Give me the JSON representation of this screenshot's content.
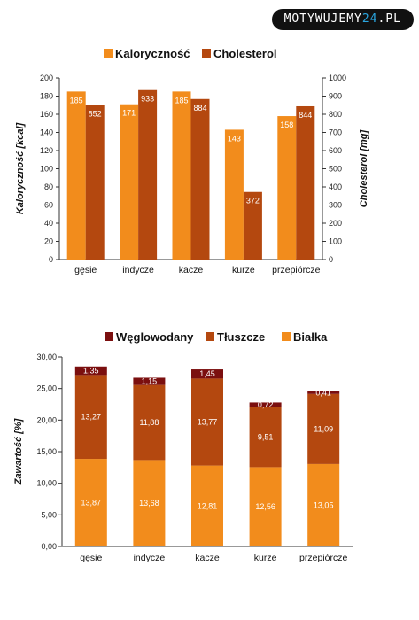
{
  "logo": {
    "main": "MOTYWUJEMY",
    "accent": "24",
    "suffix": ".PL"
  },
  "colors": {
    "kalorycznosc": "#f28c1c",
    "cholesterol": "#b4480f",
    "weglowodany": "#7b0f0f",
    "tluszcze": "#b4480f",
    "bialka": "#f28c1c"
  },
  "chart_data": [
    {
      "type": "bar",
      "categories": [
        "gęsie",
        "indycze",
        "kacze",
        "kurze",
        "przepiórcze"
      ],
      "series": [
        {
          "name": "Kaloryczność",
          "axis": "left",
          "values": [
            185,
            171,
            185,
            143,
            158
          ],
          "labels": [
            "185",
            "171",
            "185",
            "143",
            "158"
          ]
        },
        {
          "name": "Cholesterol",
          "axis": "right",
          "values": [
            852,
            933,
            884,
            372,
            844
          ],
          "labels": [
            "852",
            "933",
            "884",
            "372",
            "844"
          ]
        }
      ],
      "ylabel": "Kaloryczność [kcal]",
      "ylabel_right": "Cholesterol [mg]",
      "ylim": [
        0,
        200
      ],
      "ylim_right": [
        0,
        1000
      ],
      "yticks": [
        "0",
        "20",
        "40",
        "60",
        "80",
        "100",
        "120",
        "140",
        "160",
        "180",
        "200"
      ],
      "yticks_right": [
        "0",
        "100",
        "200",
        "300",
        "400",
        "500",
        "600",
        "700",
        "800",
        "900",
        "1000"
      ],
      "legend": "top"
    },
    {
      "type": "bar",
      "stacked": true,
      "categories": [
        "gęsie",
        "indycze",
        "kacze",
        "kurze",
        "przepiórcze"
      ],
      "series": [
        {
          "name": "Białka",
          "values": [
            13.87,
            13.68,
            12.81,
            12.56,
            13.05
          ],
          "labels": [
            "13,87",
            "13,68",
            "12,81",
            "12,56",
            "13,05"
          ]
        },
        {
          "name": "Tłuszcze",
          "values": [
            13.27,
            11.88,
            13.77,
            9.51,
            11.09
          ],
          "labels": [
            "13,27",
            "11,88",
            "13,77",
            "9,51",
            "11,09"
          ]
        },
        {
          "name": "Węglowodany",
          "values": [
            1.35,
            1.15,
            1.45,
            0.72,
            0.41
          ],
          "labels": [
            "1,35",
            "1,15",
            "1,45",
            "0,72",
            "0,41"
          ]
        }
      ],
      "legend_order": [
        "Węglowodany",
        "Tłuszcze",
        "Białka"
      ],
      "ylabel": "Zawartość [%]",
      "ylim": [
        0,
        30
      ],
      "yticks": [
        "0,00",
        "5,00",
        "10,00",
        "15,00",
        "20,00",
        "25,00",
        "30,00"
      ],
      "legend": "top"
    }
  ]
}
